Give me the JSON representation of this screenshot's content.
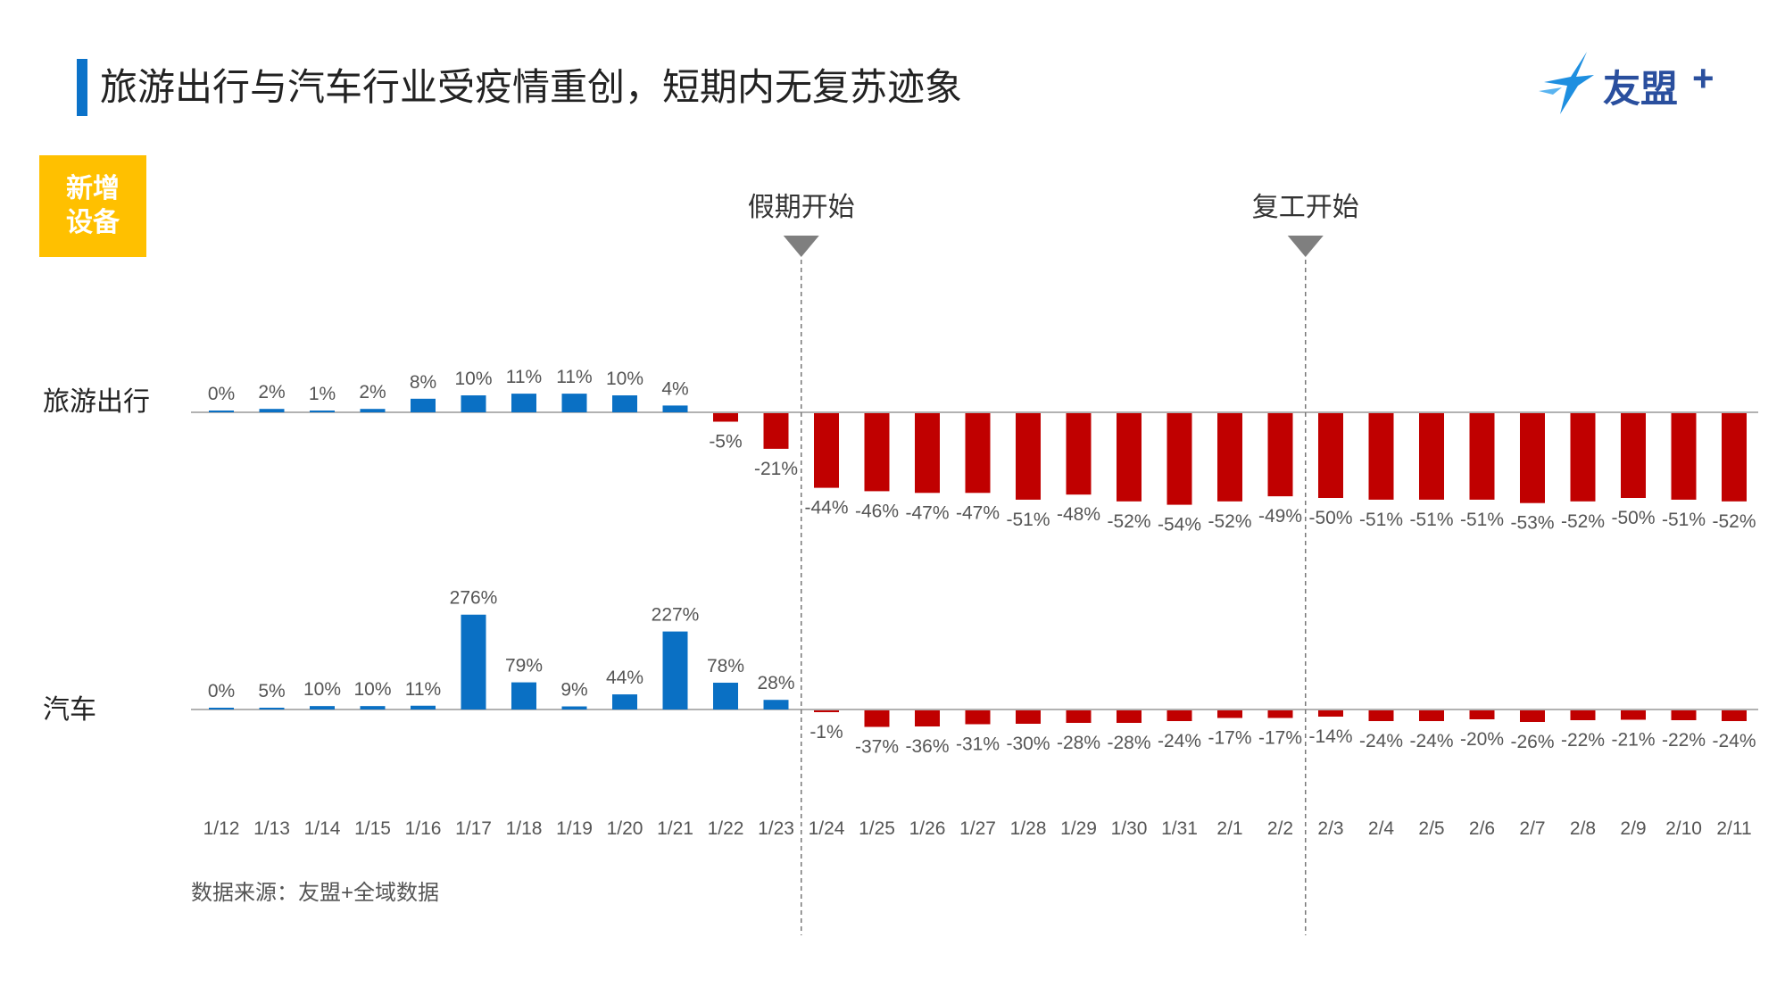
{
  "header": {
    "title": "旅游出行与汽车行业受疫情重创，短期内无复苏迹象",
    "logo_text": "友盟",
    "logo_plus": "+"
  },
  "badge": {
    "line1": "新增",
    "line2": "设备"
  },
  "source": "数据来源：友盟+全域数据",
  "colors": {
    "positive": "#0a70c4",
    "negative": "#c00000",
    "accent": "#0b72c9",
    "badge": "#ffc000",
    "marker": "#7f7f7f"
  },
  "chart_data": {
    "type": "bar",
    "categories": [
      "1/12",
      "1/13",
      "1/14",
      "1/15",
      "1/16",
      "1/17",
      "1/18",
      "1/19",
      "1/20",
      "1/21",
      "1/22",
      "1/23",
      "1/24",
      "1/25",
      "1/26",
      "1/27",
      "1/28",
      "1/29",
      "1/30",
      "1/31",
      "2/1",
      "2/2",
      "2/3",
      "2/4",
      "2/5",
      "2/6",
      "2/7",
      "2/8",
      "2/9",
      "2/10",
      "2/11"
    ],
    "series": [
      {
        "name": "旅游出行",
        "values": [
          0,
          2,
          1,
          2,
          8,
          10,
          11,
          11,
          10,
          4,
          -5,
          -21,
          -44,
          -46,
          -47,
          -47,
          -51,
          -48,
          -52,
          -54,
          -52,
          -49,
          -50,
          -51,
          -51,
          -51,
          -53,
          -52,
          -50,
          -51,
          -52
        ],
        "labels": [
          "0%",
          "2%",
          "1%",
          "2%",
          "8%",
          "10%",
          "11%",
          "11%",
          "10%",
          "4%",
          "-5%",
          "-21%",
          "-44%",
          "-46%",
          "-47%",
          "-47%",
          "-51%",
          "-48%",
          "-52%",
          "-54%",
          "-52%",
          "-49%",
          "-50%",
          "-51%",
          "-51%",
          "-51%",
          "-53%",
          "-52%",
          "-50%",
          "-51%",
          "-52%"
        ]
      },
      {
        "name": "汽车",
        "values": [
          0,
          5,
          10,
          10,
          11,
          276,
          79,
          9,
          44,
          227,
          78,
          28,
          -1,
          -37,
          -36,
          -31,
          -30,
          -28,
          -28,
          -24,
          -17,
          -17,
          -14,
          -24,
          -24,
          -20,
          -26,
          -22,
          -21,
          -22,
          -24
        ],
        "labels": [
          "0%",
          "5%",
          "10%",
          "10%",
          "11%",
          "276%",
          "79%",
          "9%",
          "44%",
          "227%",
          "78%",
          "28%",
          "-1%",
          "-37%",
          "-36%",
          "-31%",
          "-30%",
          "-28%",
          "-28%",
          "-24%",
          "-17%",
          "-17%",
          "-14%",
          "-24%",
          "-24%",
          "-20%",
          "-26%",
          "-22%",
          "-21%",
          "-22%",
          "-24%"
        ]
      }
    ],
    "annotations": [
      {
        "label": "假期开始",
        "after_category": "1/23"
      },
      {
        "label": "复工开始",
        "after_category": "2/2"
      }
    ]
  }
}
